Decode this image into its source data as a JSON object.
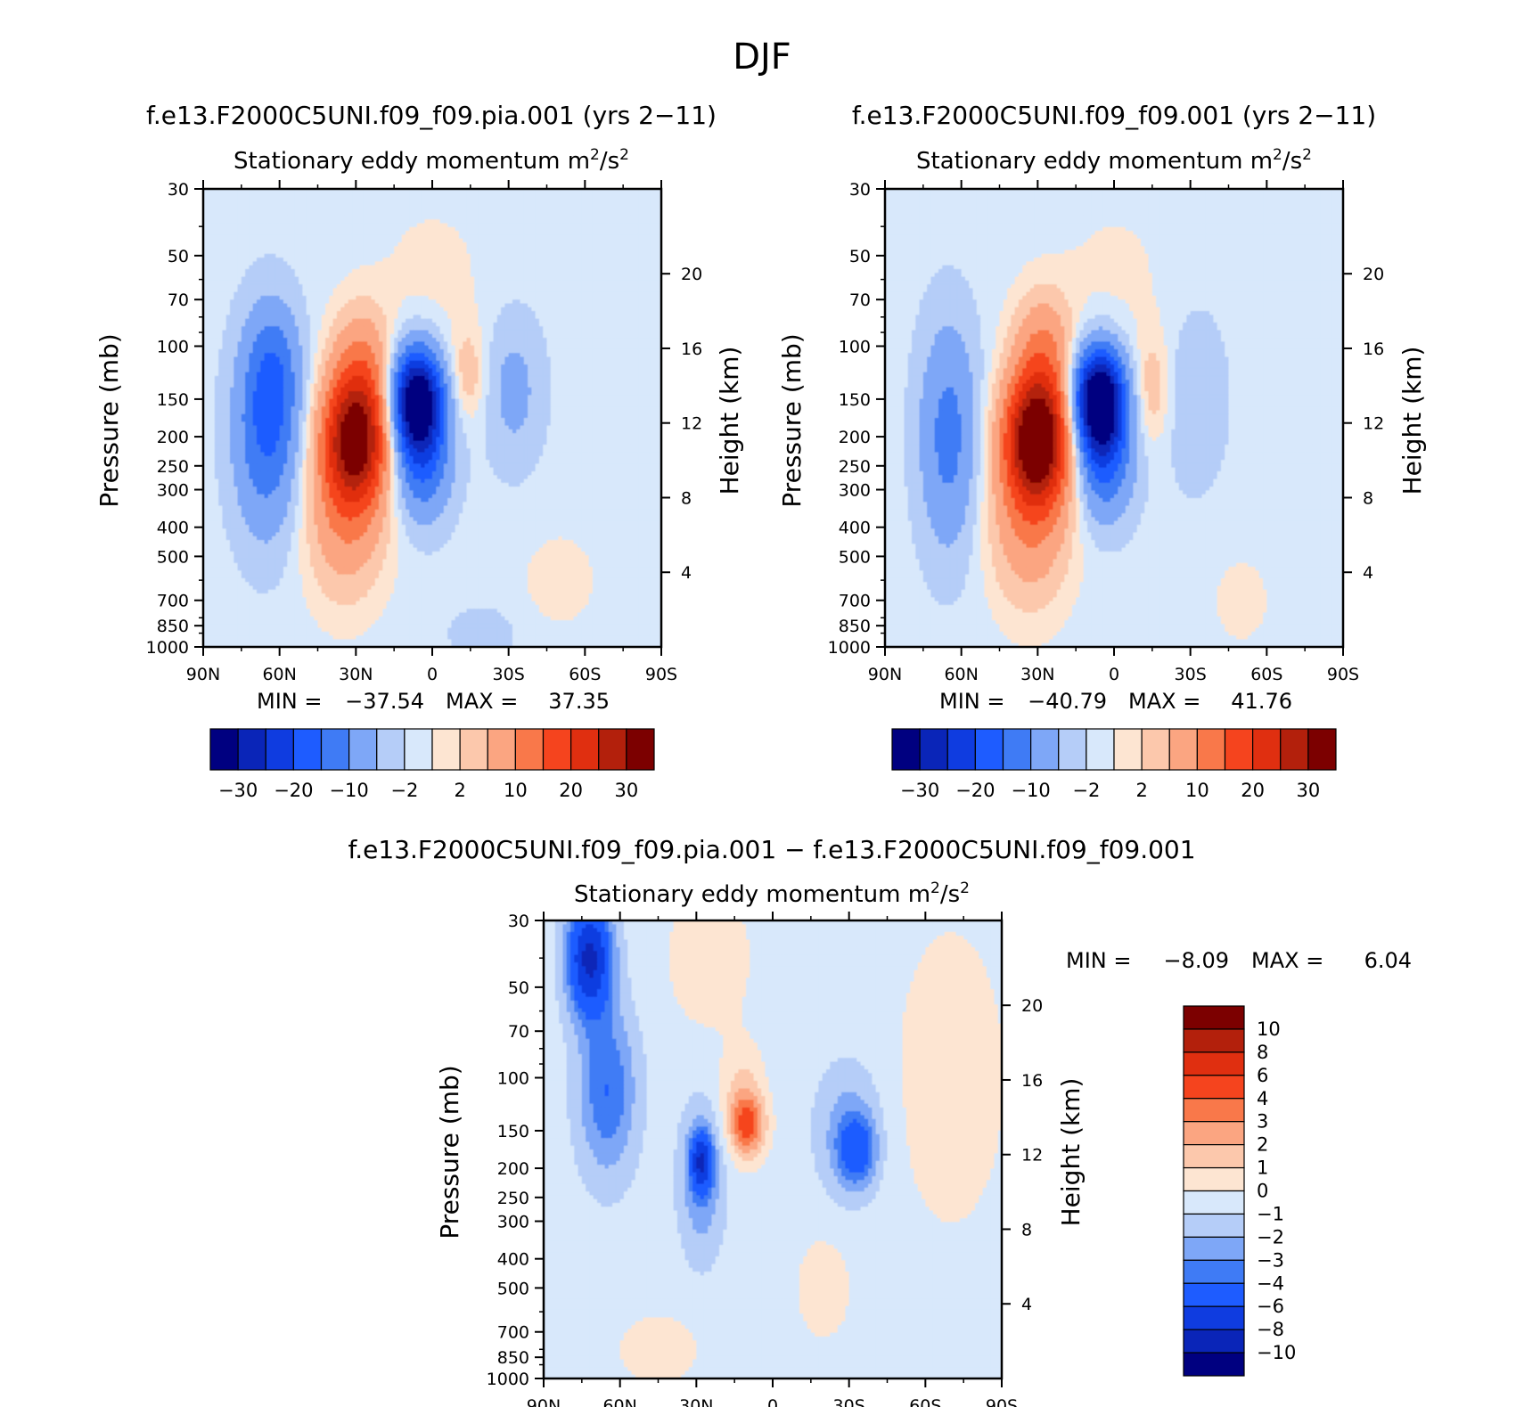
{
  "figure": {
    "suptitle": "DJF",
    "palette_blue": [
      "#000080",
      "#0a25b8",
      "#0f3ce0",
      "#1e5cff",
      "#3f7bf5",
      "#7ea7f7",
      "#b5cdf8",
      "#d8e8fb"
    ],
    "palette_red": [
      "#fde5d2",
      "#fcc8ac",
      "#fba581",
      "#f9784a",
      "#f5441e",
      "#e02f10",
      "#b3200c",
      "#7c0000"
    ],
    "zero_pos": "#fde5d2",
    "zero_neg": "#d8e8fb"
  },
  "chart_data": [
    {
      "type": "heatmap",
      "title": "f.e13.F2000C5UNI.f09_f09.pia.001 (yrs 2−11)",
      "subtitle_prefix": "Stationary eddy momentum",
      "units_base": "m",
      "units_sup": "2",
      "units_mid": "/s",
      "units_sup2": "2",
      "ylabel": "Pressure (mb)",
      "ylabel2": "Height (km)",
      "x_ticklabels": [
        "90N",
        "60N",
        "30N",
        "0",
        "30S",
        "60S",
        "90S"
      ],
      "y_ticklabels": [
        "30",
        "50",
        "70",
        "100",
        "150",
        "200",
        "250",
        "300",
        "400",
        "500",
        "700",
        "850",
        "1000"
      ],
      "y2_ticklabels": [
        "20",
        "16",
        "12",
        "8",
        "4"
      ],
      "min_label": "MIN =",
      "min_value": "−37.54",
      "max_label": "MAX =",
      "max_value": "37.35",
      "colorbar_labels": [
        "−30",
        "−20",
        "−10",
        "−2",
        "2",
        "10",
        "20",
        "30"
      ],
      "features": [
        {
          "lat": 65,
          "p": 190,
          "amp": -14,
          "wlat": 9,
          "wlogp": 0.55
        },
        {
          "lat": 62,
          "p": 120,
          "amp": -7,
          "wlat": 7,
          "wlogp": 0.35
        },
        {
          "lat": 30,
          "p": 200,
          "amp": 33,
          "wlat": 9,
          "wlogp": 0.35
        },
        {
          "lat": 34,
          "p": 360,
          "amp": 10,
          "wlat": 11,
          "wlogp": 0.45
        },
        {
          "lat": 28,
          "p": 110,
          "amp": 8,
          "wlat": 8,
          "wlogp": 0.3
        },
        {
          "lat": 6,
          "p": 150,
          "amp": -36,
          "wlat": 7,
          "wlogp": 0.27
        },
        {
          "lat": 4,
          "p": 240,
          "amp": -14,
          "wlat": 8,
          "wlogp": 0.32
        },
        {
          "lat": -14,
          "p": 125,
          "amp": 5,
          "wlat": 5,
          "wlogp": 0.25
        },
        {
          "lat": -32,
          "p": 140,
          "amp": -5.5,
          "wlat": 8,
          "wlogp": 0.4
        },
        {
          "lat": -50,
          "p": 600,
          "amp": 1.8,
          "wlat": 12,
          "wlogp": 0.3
        },
        {
          "lat": -20,
          "p": 900,
          "amp": -2.5,
          "wlat": 10,
          "wlogp": 0.15
        },
        {
          "lat": 0,
          "p": 60,
          "amp": 1.5,
          "wlat": 18,
          "wlogp": 0.5
        }
      ],
      "background": -1,
      "ylim_p": [
        30,
        1000
      ],
      "xlim_lat": [
        90,
        -90
      ]
    },
    {
      "type": "heatmap",
      "title": "f.e13.F2000C5UNI.f09_f09.001 (yrs 2−11)",
      "subtitle_prefix": "Stationary eddy momentum",
      "units_base": "m",
      "units_sup": "2",
      "units_mid": "/s",
      "units_sup2": "2",
      "ylabel": "Pressure (mb)",
      "ylabel2": "Height (km)",
      "x_ticklabels": [
        "90N",
        "60N",
        "30N",
        "0",
        "30S",
        "60S",
        "90S"
      ],
      "y_ticklabels": [
        "30",
        "50",
        "70",
        "100",
        "150",
        "200",
        "250",
        "300",
        "400",
        "500",
        "700",
        "850",
        "1000"
      ],
      "y2_ticklabels": [
        "20",
        "16",
        "12",
        "8",
        "4"
      ],
      "min_label": "MIN =",
      "min_value": "−40.79",
      "max_label": "MAX =",
      "max_value": "41.76",
      "colorbar_labels": [
        "−30",
        "−20",
        "−10",
        "−2",
        "2",
        "10",
        "20",
        "30"
      ],
      "features": [
        {
          "lat": 65,
          "p": 200,
          "amp": -11,
          "wlat": 8,
          "wlogp": 0.6
        },
        {
          "lat": 30,
          "p": 200,
          "amp": 38,
          "wlat": 9,
          "wlogp": 0.35
        },
        {
          "lat": 33,
          "p": 380,
          "amp": 10,
          "wlat": 11,
          "wlogp": 0.45
        },
        {
          "lat": 28,
          "p": 100,
          "amp": 9,
          "wlat": 8,
          "wlogp": 0.3
        },
        {
          "lat": 6,
          "p": 150,
          "amp": -39,
          "wlat": 7,
          "wlogp": 0.27
        },
        {
          "lat": 4,
          "p": 240,
          "amp": -14,
          "wlat": 8,
          "wlogp": 0.32
        },
        {
          "lat": -15,
          "p": 140,
          "amp": 5,
          "wlat": 5,
          "wlogp": 0.3
        },
        {
          "lat": -32,
          "p": 150,
          "amp": -3.2,
          "wlat": 9,
          "wlogp": 0.5
        },
        {
          "lat": -50,
          "p": 700,
          "amp": 1.6,
          "wlat": 10,
          "wlogp": 0.3
        },
        {
          "lat": 0,
          "p": 60,
          "amp": 1.4,
          "wlat": 18,
          "wlogp": 0.5
        }
      ],
      "background": -1,
      "ylim_p": [
        30,
        1000
      ],
      "xlim_lat": [
        90,
        -90
      ]
    },
    {
      "type": "heatmap",
      "title": "f.e13.F2000C5UNI.f09_f09.pia.001 − f.e13.F2000C5UNI.f09_f09.001",
      "subtitle_prefix": "Stationary eddy momentum",
      "units_base": "m",
      "units_sup": "2",
      "units_mid": "/s",
      "units_sup2": "2",
      "ylabel": "Pressure (mb)",
      "ylabel2": "Height (km)",
      "x_ticklabels": [
        "90N",
        "60N",
        "30N",
        "0",
        "30S",
        "60S",
        "90S"
      ],
      "y_ticklabels": [
        "30",
        "50",
        "70",
        "100",
        "150",
        "200",
        "250",
        "300",
        "400",
        "500",
        "700",
        "850",
        "1000"
      ],
      "y2_ticklabels": [
        "20",
        "16",
        "12",
        "8",
        "4"
      ],
      "min_label": "MIN =",
      "min_value": "−8.09",
      "max_label": "MAX =",
      "max_value": "6.04",
      "colorbar_labels": [
        "10",
        "8",
        "6",
        "4",
        "3",
        "2",
        "1",
        "0",
        "−1",
        "−2",
        "−3",
        "−4",
        "−6",
        "−8",
        "−10"
      ],
      "features": [
        {
          "lat": 72,
          "p": 40,
          "amp": -8,
          "wlat": 6,
          "wlogp": 0.3
        },
        {
          "lat": 65,
          "p": 110,
          "amp": -3.5,
          "wlat": 8,
          "wlogp": 0.45
        },
        {
          "lat": 28,
          "p": 190,
          "amp": -6,
          "wlat": 3,
          "wlogp": 0.15
        },
        {
          "lat": 28,
          "p": 220,
          "amp": -2.5,
          "wlat": 6,
          "wlogp": 0.4
        },
        {
          "lat": 10,
          "p": 145,
          "amp": 4.5,
          "wlat": 5,
          "wlogp": 0.17
        },
        {
          "lat": 12,
          "p": 110,
          "amp": 1.6,
          "wlat": 6,
          "wlogp": 0.25
        },
        {
          "lat": -33,
          "p": 175,
          "amp": -3.8,
          "wlat": 5,
          "wlogp": 0.18
        },
        {
          "lat": -30,
          "p": 150,
          "amp": -2,
          "wlat": 9,
          "wlogp": 0.35
        },
        {
          "lat": 25,
          "p": 40,
          "amp": 1.2,
          "wlat": 12,
          "wlogp": 0.4
        },
        {
          "lat": -70,
          "p": 100,
          "amp": 1.3,
          "wlat": 15,
          "wlogp": 0.8
        },
        {
          "lat": -20,
          "p": 500,
          "amp": 1.1,
          "wlat": 8,
          "wlogp": 0.3
        },
        {
          "lat": 45,
          "p": 800,
          "amp": 1.1,
          "wlat": 12,
          "wlogp": 0.2
        }
      ],
      "background": -0.5,
      "ylim_p": [
        30,
        1000
      ],
      "xlim_lat": [
        90,
        -90
      ]
    }
  ]
}
